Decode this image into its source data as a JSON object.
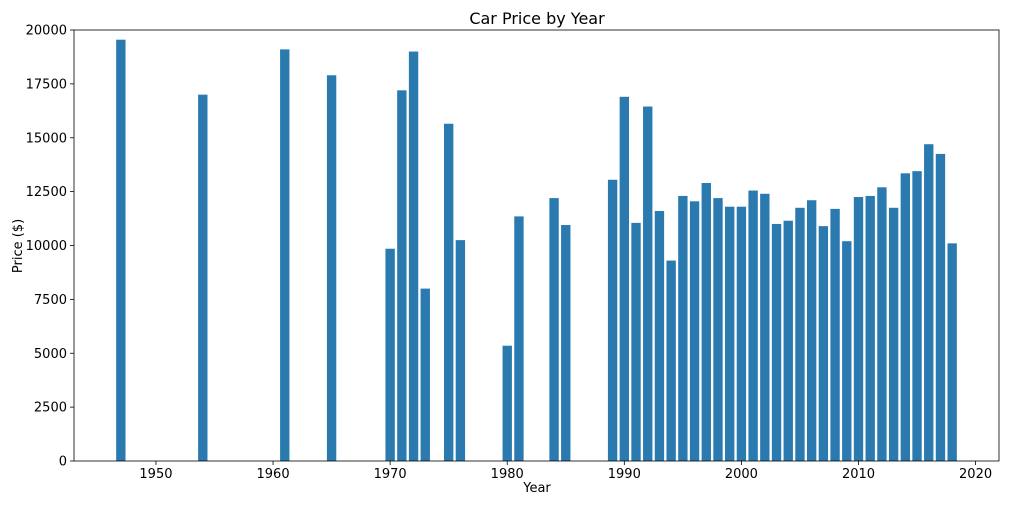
{
  "chart_data": {
    "type": "bar",
    "title": "Car Price by Year",
    "xlabel": "Year",
    "ylabel": "Price ($)",
    "xlim": [
      1943,
      2022
    ],
    "ylim": [
      0,
      20000
    ],
    "xticks": [
      1950,
      1960,
      1970,
      1980,
      1990,
      2000,
      2010,
      2020
    ],
    "yticks": [
      0,
      2500,
      5000,
      7500,
      10000,
      12500,
      15000,
      17500,
      20000
    ],
    "grid": false,
    "bar_color": "#2a7ab0",
    "bar_width_years": 0.8,
    "x": [
      1947,
      1954,
      1961,
      1965,
      1970,
      1971,
      1972,
      1973,
      1975,
      1976,
      1980,
      1981,
      1984,
      1985,
      1989,
      1990,
      1991,
      1992,
      1993,
      1994,
      1995,
      1996,
      1997,
      1998,
      1999,
      2000,
      2001,
      2002,
      2003,
      2004,
      2005,
      2006,
      2007,
      2008,
      2009,
      2010,
      2011,
      2012,
      2013,
      2014,
      2015,
      2016,
      2017,
      2018
    ],
    "values": [
      19550,
      17000,
      19100,
      17900,
      9850,
      17200,
      19000,
      8000,
      15650,
      10250,
      5350,
      11350,
      12200,
      10950,
      13050,
      16900,
      11050,
      16450,
      11600,
      9300,
      12300,
      12050,
      12900,
      12200,
      11800,
      11800,
      12550,
      12400,
      11000,
      11150,
      11750,
      12100,
      10900,
      11700,
      10200,
      12250,
      12300,
      12700,
      11750,
      13350,
      13450,
      14700,
      14250,
      10100
    ]
  }
}
